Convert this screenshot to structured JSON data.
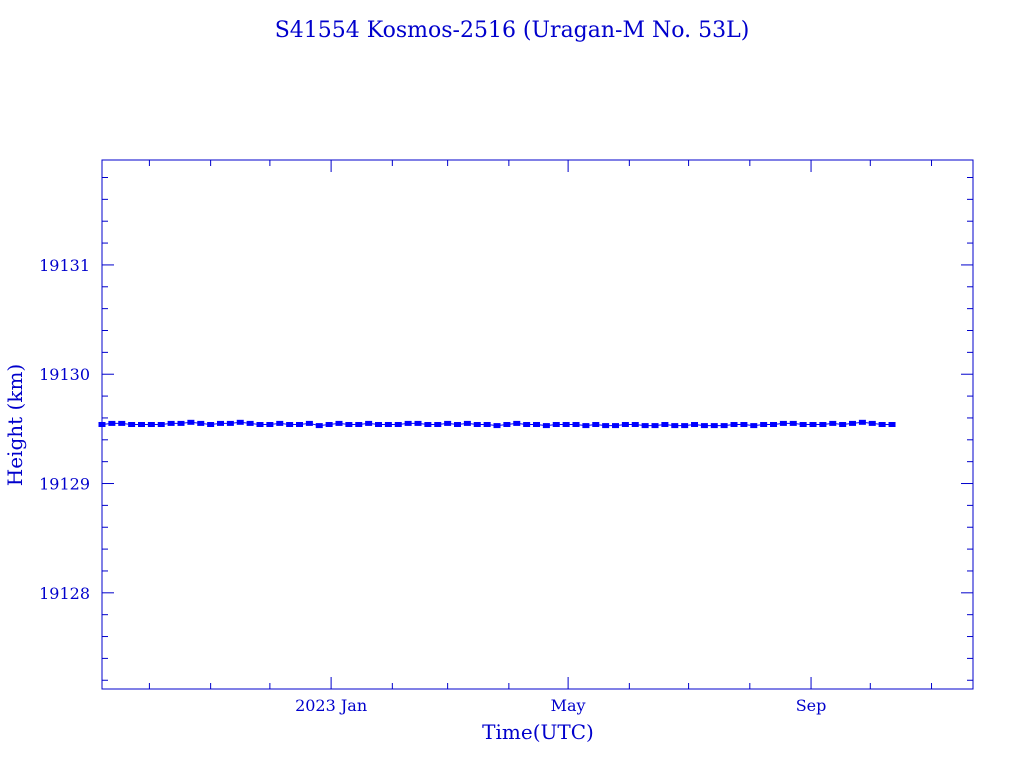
{
  "chart_data": {
    "type": "scatter",
    "title": "S41554 Kosmos-2516  (Uragan-M No. 53L)",
    "xlabel": "Time(UTC)",
    "ylabel": "Height (km)",
    "x_units": "days since 2023-01-01",
    "xlim": [
      -116,
      325
    ],
    "ylim": [
      19127.12,
      19131.96
    ],
    "x_ticks": [
      {
        "value": 0,
        "label": "2023 Jan"
      },
      {
        "value": 120,
        "label": "May"
      },
      {
        "value": 243,
        "label": "Sep"
      }
    ],
    "x_minor_ticks": [
      -92,
      -61,
      -31,
      31,
      59,
      90,
      151,
      181,
      212,
      273,
      304
    ],
    "y_ticks": [
      19128,
      19129,
      19130,
      19131
    ],
    "grid": false,
    "color": "#0000ff",
    "axis_color": "#0000cc",
    "x": [
      -116,
      -111,
      -106,
      -101,
      -96,
      -91,
      -86,
      -81,
      -76,
      -71,
      -66,
      -61,
      -56,
      -51,
      -46,
      -41,
      -36,
      -31,
      -26,
      -21,
      -16,
      -11,
      -6,
      -1,
      4,
      9,
      14,
      19,
      24,
      29,
      34,
      39,
      44,
      49,
      54,
      59,
      64,
      69,
      74,
      79,
      84,
      89,
      94,
      99,
      104,
      109,
      114,
      119,
      124,
      129,
      134,
      139,
      144,
      149,
      154,
      159,
      164,
      169,
      174,
      179,
      184,
      189,
      194,
      199,
      204,
      209,
      214,
      219,
      224,
      229,
      234,
      239,
      244,
      249,
      254,
      259,
      264,
      269,
      274,
      279,
      284
    ],
    "y": [
      19129.54,
      19129.55,
      19129.55,
      19129.54,
      19129.54,
      19129.54,
      19129.54,
      19129.55,
      19129.55,
      19129.56,
      19129.55,
      19129.54,
      19129.55,
      19129.55,
      19129.56,
      19129.55,
      19129.54,
      19129.54,
      19129.55,
      19129.54,
      19129.54,
      19129.55,
      19129.53,
      19129.54,
      19129.55,
      19129.54,
      19129.54,
      19129.55,
      19129.54,
      19129.54,
      19129.54,
      19129.55,
      19129.55,
      19129.54,
      19129.54,
      19129.55,
      19129.54,
      19129.55,
      19129.54,
      19129.54,
      19129.53,
      19129.54,
      19129.55,
      19129.54,
      19129.54,
      19129.53,
      19129.54,
      19129.54,
      19129.54,
      19129.53,
      19129.54,
      19129.53,
      19129.53,
      19129.54,
      19129.54,
      19129.53,
      19129.53,
      19129.54,
      19129.53,
      19129.53,
      19129.54,
      19129.53,
      19129.53,
      19129.53,
      19129.54,
      19129.54,
      19129.53,
      19129.54,
      19129.54,
      19129.55,
      19129.55,
      19129.54,
      19129.54,
      19129.54,
      19129.55,
      19129.54,
      19129.55,
      19129.56,
      19129.55,
      19129.54,
      19129.54
    ]
  }
}
